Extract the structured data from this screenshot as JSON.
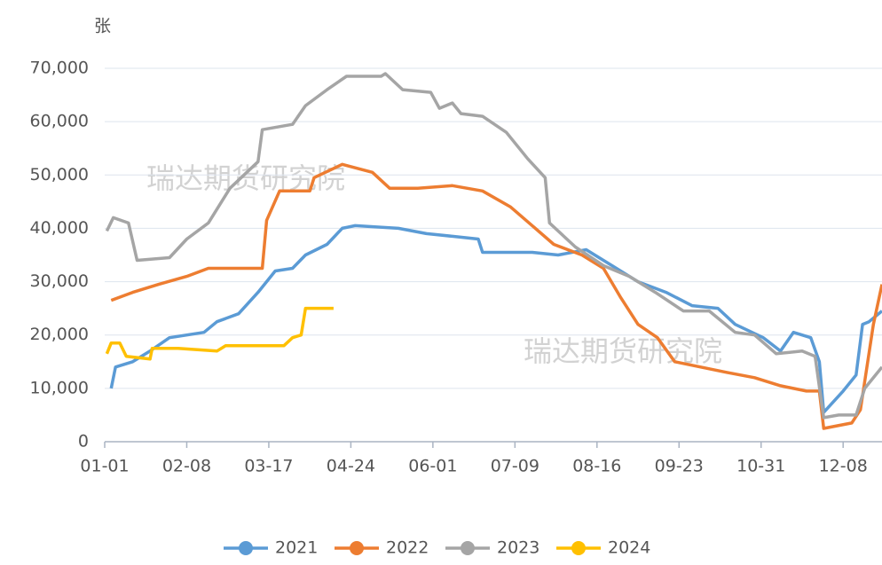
{
  "chart_data": {
    "type": "line",
    "y_unit": "张",
    "watermarks": [
      "瑞达期货研究院",
      "瑞达期货研究院"
    ],
    "xlim": [
      0,
      360
    ],
    "xticks": [
      {
        "value": 0,
        "label": "01-01"
      },
      {
        "value": 38,
        "label": "02-08"
      },
      {
        "value": 76,
        "label": "03-17"
      },
      {
        "value": 114,
        "label": "04-24"
      },
      {
        "value": 152,
        "label": "06-01"
      },
      {
        "value": 190,
        "label": "07-09"
      },
      {
        "value": 228,
        "label": "08-16"
      },
      {
        "value": 266,
        "label": "09-23"
      },
      {
        "value": 304,
        "label": "10-31"
      },
      {
        "value": 342,
        "label": "12-08"
      }
    ],
    "ylim": [
      0,
      70000
    ],
    "yticks": [
      {
        "value": 0,
        "label": "0"
      },
      {
        "value": 10000,
        "label": "10,000"
      },
      {
        "value": 20000,
        "label": "20,000"
      },
      {
        "value": 30000,
        "label": "30,000"
      },
      {
        "value": 40000,
        "label": "40,000"
      },
      {
        "value": 50000,
        "label": "50,000"
      },
      {
        "value": 60000,
        "label": "60,000"
      },
      {
        "value": 70000,
        "label": "70,000"
      }
    ],
    "grid": true,
    "series": [
      {
        "name": "2021",
        "color": "#5b9bd5",
        "x": [
          3,
          5,
          13,
          21,
          30,
          46,
          52,
          62,
          71,
          79,
          87,
          93,
          103,
          110,
          116,
          136,
          149,
          161,
          173,
          175,
          198,
          210,
          223,
          235,
          247,
          260,
          272,
          284,
          292,
          305,
          313,
          319,
          327,
          331,
          333,
          342,
          348,
          351,
          354,
          360
        ],
        "values": [
          10000,
          14000,
          15000,
          17000,
          19500,
          20500,
          22500,
          24000,
          28000,
          32000,
          32500,
          35000,
          37000,
          40000,
          40500,
          40000,
          39000,
          38500,
          38000,
          35500,
          35500,
          35000,
          36000,
          33000,
          30000,
          28000,
          25500,
          25000,
          22000,
          19500,
          17000,
          20500,
          19500,
          15000,
          5500,
          9500,
          12500,
          22000,
          22500,
          24500
        ]
      },
      {
        "name": "2022",
        "color": "#ed7d31",
        "x": [
          3,
          13,
          25,
          38,
          48,
          73,
          75,
          81,
          95,
          97,
          110,
          124,
          132,
          145,
          161,
          175,
          188,
          198,
          208,
          221,
          231,
          239,
          247,
          256,
          264,
          276,
          288,
          301,
          313,
          325,
          331,
          333,
          346,
          350,
          356,
          360
        ],
        "values": [
          26500,
          28000,
          29500,
          31000,
          32500,
          32500,
          41500,
          47000,
          47000,
          49500,
          52000,
          50500,
          47500,
          47500,
          48000,
          47000,
          44000,
          40500,
          37000,
          35000,
          32500,
          27000,
          22000,
          19500,
          15000,
          14000,
          13000,
          12000,
          10500,
          9500,
          9500,
          2500,
          3500,
          6000,
          22000,
          29500
        ]
      },
      {
        "name": "2023",
        "color": "#a5a5a5",
        "x": [
          1,
          4,
          11,
          15,
          30,
          38,
          48,
          58,
          71,
          73,
          87,
          93,
          103,
          112,
          128,
          130,
          138,
          151,
          155,
          161,
          165,
          175,
          186,
          196,
          204,
          206,
          218,
          231,
          243,
          255,
          268,
          280,
          292,
          301,
          311,
          323,
          329,
          333,
          340,
          348,
          352,
          360
        ],
        "values": [
          39500,
          42000,
          41000,
          34000,
          34500,
          38000,
          41000,
          47500,
          52500,
          58500,
          59500,
          63000,
          66000,
          68500,
          68500,
          69000,
          66000,
          65500,
          62500,
          63500,
          61500,
          61000,
          58000,
          53000,
          49500,
          41000,
          36500,
          33000,
          31000,
          28000,
          24500,
          24500,
          20500,
          20000,
          16500,
          17000,
          16000,
          4500,
          5000,
          5000,
          10000,
          14000
        ]
      },
      {
        "name": "2024",
        "color": "#ffc000",
        "x": [
          1,
          3,
          7,
          10,
          21,
          22,
          34,
          52,
          56,
          83,
          87,
          91,
          93,
          106
        ],
        "values": [
          16500,
          18500,
          18500,
          16000,
          15500,
          17500,
          17500,
          17000,
          18000,
          18000,
          19500,
          20000,
          25000,
          25000
        ]
      }
    ]
  }
}
